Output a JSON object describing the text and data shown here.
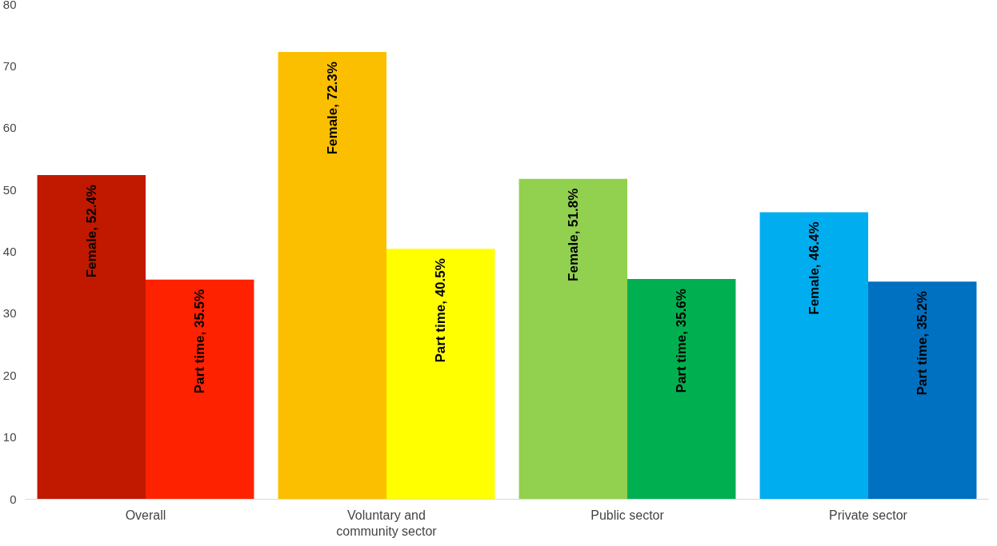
{
  "chart_data": {
    "type": "bar",
    "categories": [
      "Overall",
      "Voluntary and community sector",
      "Public sector",
      "Private sector"
    ],
    "series": [
      {
        "colors": [
          "#c01900",
          "#fbbf00",
          "#92d050",
          "#00adef"
        ],
        "values": [
          52.4,
          72.3,
          51.8,
          46.4
        ],
        "value_labels": [
          "Female, 52.4%",
          "Female, 72.3%",
          "Female, 51.8%",
          "Female, 46.4%"
        ]
      },
      {
        "colors": [
          "#ff2200",
          "#ffff00",
          "#00b050",
          "#0070c0"
        ],
        "values": [
          35.5,
          40.5,
          35.6,
          35.2
        ],
        "value_labels": [
          "Part time, 35.5%",
          "Part time, 40.5%",
          "Part time, 35.6%",
          "Part time, 35.2%"
        ]
      }
    ],
    "ylim": [
      0,
      80
    ],
    "yticks": [
      0,
      10,
      20,
      30,
      40,
      50,
      60,
      70,
      80
    ],
    "grid": false,
    "legend": false
  }
}
